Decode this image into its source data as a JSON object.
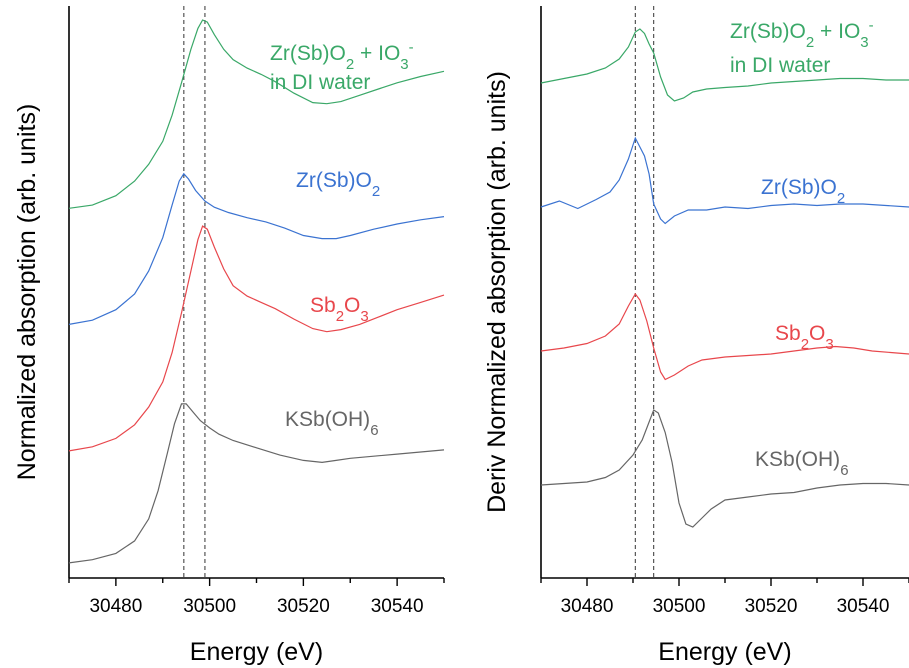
{
  "chart_data": [
    {
      "type": "line",
      "xlabel": "Energy (eV)",
      "ylabel": "Normalized absorption (arb. units)",
      "xlim": [
        30470,
        30550
      ],
      "xticks": [
        30480,
        30500,
        30520,
        30540
      ],
      "yticks": false,
      "grid": false,
      "reference_lines_x": [
        30494.5,
        30499
      ],
      "series": [
        {
          "label": "KSb(OH)6",
          "label_main": "KSb(OH)",
          "label_sub": "6",
          "color": "#666666",
          "points": [
            [
              30470,
              0.03
            ],
            [
              30475,
              0.06
            ],
            [
              30480,
              0.12
            ],
            [
              30484,
              0.24
            ],
            [
              30487,
              0.45
            ],
            [
              30489,
              0.72
            ],
            [
              30491,
              1.08
            ],
            [
              30492.5,
              1.36
            ],
            [
              30494,
              1.55
            ],
            [
              30495,
              1.55
            ],
            [
              30496.5,
              1.47
            ],
            [
              30498,
              1.39
            ],
            [
              30500,
              1.32
            ],
            [
              30502,
              1.26
            ],
            [
              30505,
              1.2
            ],
            [
              30510,
              1.13
            ],
            [
              30515,
              1.06
            ],
            [
              30520,
              1.01
            ],
            [
              30524,
              0.99
            ],
            [
              30527,
              1.01
            ],
            [
              30530,
              1.03
            ],
            [
              30535,
              1.05
            ],
            [
              30540,
              1.07
            ],
            [
              30545,
              1.09
            ],
            [
              30550,
              1.11
            ]
          ]
        },
        {
          "label": "Sb2O3",
          "label_main": "Sb",
          "label_sub": "2",
          "label_main2": "O",
          "label_sub2": "3",
          "color": "#e8474c",
          "points": [
            [
              30470,
              1.1
            ],
            [
              30475,
              1.14
            ],
            [
              30480,
              1.22
            ],
            [
              30484,
              1.35
            ],
            [
              30487,
              1.52
            ],
            [
              30490,
              1.76
            ],
            [
              30492,
              2.04
            ],
            [
              30494,
              2.42
            ],
            [
              30496,
              2.82
            ],
            [
              30497.5,
              3.12
            ],
            [
              30498.5,
              3.25
            ],
            [
              30499.5,
              3.22
            ],
            [
              30501,
              3.05
            ],
            [
              30503,
              2.84
            ],
            [
              30505,
              2.68
            ],
            [
              30508,
              2.58
            ],
            [
              30511,
              2.52
            ],
            [
              30514,
              2.46
            ],
            [
              30518,
              2.36
            ],
            [
              30522,
              2.27
            ],
            [
              30525,
              2.24
            ],
            [
              30528,
              2.26
            ],
            [
              30532,
              2.31
            ],
            [
              30536,
              2.38
            ],
            [
              30540,
              2.45
            ],
            [
              30545,
              2.52
            ],
            [
              30550,
              2.59
            ]
          ]
        },
        {
          "label": "Zr(Sb)O2",
          "label_main": "Zr(Sb)O",
          "label_sub": "2",
          "color": "#3b73d1",
          "points": [
            [
              30470,
              2.31
            ],
            [
              30475,
              2.35
            ],
            [
              30480,
              2.45
            ],
            [
              30484,
              2.6
            ],
            [
              30487,
              2.82
            ],
            [
              30490,
              3.14
            ],
            [
              30492,
              3.45
            ],
            [
              30493.5,
              3.68
            ],
            [
              30494.5,
              3.75
            ],
            [
              30495.5,
              3.7
            ],
            [
              30497,
              3.59
            ],
            [
              30499,
              3.49
            ],
            [
              30501,
              3.43
            ],
            [
              30504,
              3.38
            ],
            [
              30508,
              3.33
            ],
            [
              30512,
              3.29
            ],
            [
              30516,
              3.23
            ],
            [
              30520,
              3.16
            ],
            [
              30524,
              3.13
            ],
            [
              30527,
              3.13
            ],
            [
              30530,
              3.16
            ],
            [
              30535,
              3.22
            ],
            [
              30540,
              3.27
            ],
            [
              30545,
              3.31
            ],
            [
              30550,
              3.34
            ]
          ]
        },
        {
          "label": "Zr(Sb)O2 + IO3- in DI water",
          "label_main": "Zr(Sb)O",
          "label_sub": "2",
          "label_main2": " + IO",
          "label_sub2": "3",
          "label_sup2": "-",
          "label_line2": "in DI water",
          "color": "#3aa868",
          "points": [
            [
              30470,
              3.42
            ],
            [
              30475,
              3.45
            ],
            [
              30480,
              3.54
            ],
            [
              30484,
              3.68
            ],
            [
              30487,
              3.84
            ],
            [
              30490,
              4.06
            ],
            [
              30492,
              4.31
            ],
            [
              30494,
              4.62
            ],
            [
              30496,
              4.94
            ],
            [
              30497.5,
              5.14
            ],
            [
              30498.5,
              5.22
            ],
            [
              30499.5,
              5.2
            ],
            [
              30501,
              5.08
            ],
            [
              30503,
              4.94
            ],
            [
              30505,
              4.84
            ],
            [
              30508,
              4.76
            ],
            [
              30511,
              4.7
            ],
            [
              30514,
              4.63
            ],
            [
              30518,
              4.52
            ],
            [
              30522,
              4.43
            ],
            [
              30525,
              4.42
            ],
            [
              30528,
              4.44
            ],
            [
              30532,
              4.5
            ],
            [
              30536,
              4.56
            ],
            [
              30540,
              4.62
            ],
            [
              30545,
              4.68
            ],
            [
              30550,
              4.73
            ]
          ]
        }
      ]
    },
    {
      "type": "line",
      "xlabel": "Energy (eV)",
      "ylabel": "Deriv Normalized absorption (arb. units)",
      "xlim": [
        30470,
        30550
      ],
      "xticks": [
        30480,
        30500,
        30520,
        30540
      ],
      "yticks": false,
      "grid": false,
      "reference_lines_x": [
        30490.5,
        30494.5
      ],
      "series": [
        {
          "label": "KSb(OH)6",
          "label_main": "KSb(OH)",
          "label_sub": "6",
          "color": "#666666",
          "points": [
            [
              30470,
              0.0
            ],
            [
              30475,
              0.01
            ],
            [
              30480,
              0.02
            ],
            [
              30484,
              0.05
            ],
            [
              30487,
              0.1
            ],
            [
              30490,
              0.2
            ],
            [
              30492,
              0.3
            ],
            [
              30493.5,
              0.42
            ],
            [
              30494.5,
              0.5
            ],
            [
              30495.5,
              0.48
            ],
            [
              30497,
              0.35
            ],
            [
              30498.5,
              0.15
            ],
            [
              30500,
              -0.12
            ],
            [
              30501.5,
              -0.26
            ],
            [
              30503,
              -0.28
            ],
            [
              30505,
              -0.22
            ],
            [
              30507,
              -0.16
            ],
            [
              30510,
              -0.1
            ],
            [
              30515,
              -0.08
            ],
            [
              30520,
              -0.06
            ],
            [
              30525,
              -0.05
            ],
            [
              30530,
              -0.02
            ],
            [
              30535,
              0.0
            ],
            [
              30540,
              0.01
            ],
            [
              30545,
              0.01
            ],
            [
              30550,
              0.0
            ]
          ]
        },
        {
          "label": "Sb2O3",
          "label_main": "Sb",
          "label_sub": "2",
          "label_main2": "O",
          "label_sub2": "3",
          "color": "#e8474c",
          "points": [
            [
              30470,
              0.0
            ],
            [
              30475,
              0.02
            ],
            [
              30480,
              0.05
            ],
            [
              30484,
              0.1
            ],
            [
              30487,
              0.18
            ],
            [
              30489,
              0.3
            ],
            [
              30490.5,
              0.38
            ],
            [
              30491.5,
              0.34
            ],
            [
              30493,
              0.2
            ],
            [
              30494.5,
              0.02
            ],
            [
              30496,
              -0.14
            ],
            [
              30497,
              -0.19
            ],
            [
              30499,
              -0.16
            ],
            [
              30502,
              -0.1
            ],
            [
              30505,
              -0.06
            ],
            [
              30510,
              -0.04
            ],
            [
              30515,
              -0.03
            ],
            [
              30520,
              -0.02
            ],
            [
              30525,
              0.0
            ],
            [
              30530,
              0.02
            ],
            [
              30534,
              0.03
            ],
            [
              30538,
              0.02
            ],
            [
              30542,
              0.0
            ],
            [
              30546,
              -0.01
            ],
            [
              30550,
              -0.02
            ]
          ]
        },
        {
          "label": "Zr(Sb)O2",
          "label_main": "Zr(Sb)O",
          "label_sub": "2",
          "color": "#3b73d1",
          "points": [
            [
              30470,
              0.0
            ],
            [
              30474,
              0.04
            ],
            [
              30478,
              -0.01
            ],
            [
              30482,
              0.05
            ],
            [
              30485,
              0.1
            ],
            [
              30487,
              0.18
            ],
            [
              30489,
              0.32
            ],
            [
              30490.5,
              0.46
            ],
            [
              30491.5,
              0.4
            ],
            [
              30492.5,
              0.34
            ],
            [
              30493.5,
              0.22
            ],
            [
              30494.5,
              0.02
            ],
            [
              30496,
              -0.08
            ],
            [
              30497,
              -0.11
            ],
            [
              30499,
              -0.06
            ],
            [
              30502,
              -0.02
            ],
            [
              30506,
              -0.02
            ],
            [
              30510,
              0.0
            ],
            [
              30515,
              -0.01
            ],
            [
              30520,
              0.01
            ],
            [
              30525,
              0.02
            ],
            [
              30530,
              0.01
            ],
            [
              30535,
              0.02
            ],
            [
              30540,
              0.02
            ],
            [
              30545,
              0.01
            ],
            [
              30550,
              0.0
            ]
          ]
        },
        {
          "label": "Zr(Sb)O2 + IO3- in DI water",
          "label_main": "Zr(Sb)O",
          "label_sub": "2",
          "label_main2": " + IO",
          "label_sub2": "3",
          "label_sup2": "-",
          "label_line2": "in DI water",
          "color": "#3aa868",
          "points": [
            [
              30470,
              0.0
            ],
            [
              30475,
              0.03
            ],
            [
              30480,
              0.06
            ],
            [
              30484,
              0.1
            ],
            [
              30487,
              0.16
            ],
            [
              30489,
              0.24
            ],
            [
              30490.5,
              0.34
            ],
            [
              30491.5,
              0.36
            ],
            [
              30492.5,
              0.33
            ],
            [
              30493.5,
              0.26
            ],
            [
              30494.5,
              0.2
            ],
            [
              30496,
              0.04
            ],
            [
              30497.5,
              -0.08
            ],
            [
              30499,
              -0.12
            ],
            [
              30501,
              -0.1
            ],
            [
              30503,
              -0.06
            ],
            [
              30506,
              -0.04
            ],
            [
              30510,
              -0.03
            ],
            [
              30515,
              -0.02
            ],
            [
              30520,
              0.0
            ],
            [
              30525,
              0.01
            ],
            [
              30530,
              0.02
            ],
            [
              30535,
              0.03
            ],
            [
              30540,
              0.03
            ],
            [
              30545,
              0.02
            ],
            [
              30550,
              0.02
            ]
          ]
        }
      ]
    }
  ]
}
